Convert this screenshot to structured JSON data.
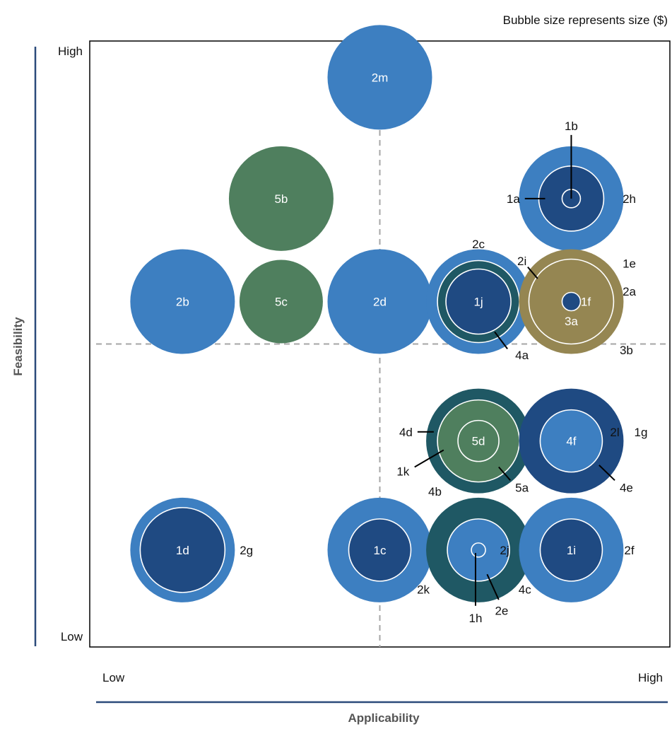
{
  "chart_data": {
    "type": "bubble-matrix",
    "note": "Bubble size represents size ($)",
    "xlabel": "Applicability",
    "ylabel": "Feasibility",
    "x_low": "Low",
    "x_high": "High",
    "y_low": "Low",
    "y_high": "High",
    "colors": {
      "light_blue": "#3d7fc1",
      "dark_blue": "#1f4a82",
      "dark_teal": "#1f5864",
      "green": "#4f7f5e",
      "gold": "#958652",
      "frame": "#000000",
      "axis_accent": "#2b4a7a",
      "divider": "#a6a6a6"
    },
    "xlim": [
      0,
      1
    ],
    "ylim": [
      0,
      1
    ],
    "divider_x": 0.5,
    "divider_y": 0.5,
    "bubbles": [
      {
        "x": 0.5,
        "y": 0.94,
        "rings": [
          {
            "r": 74,
            "color": "light_blue"
          }
        ],
        "label": "2m"
      },
      {
        "x": 0.33,
        "y": 0.74,
        "rings": [
          {
            "r": 74,
            "color": "green"
          }
        ],
        "label": "5b"
      },
      {
        "x": 0.16,
        "y": 0.57,
        "rings": [
          {
            "r": 74,
            "color": "light_blue"
          }
        ],
        "label": "2b"
      },
      {
        "x": 0.33,
        "y": 0.57,
        "rings": [
          {
            "r": 59,
            "color": "green"
          }
        ],
        "label": "5c"
      },
      {
        "x": 0.5,
        "y": 0.57,
        "rings": [
          {
            "r": 74,
            "color": "light_blue"
          }
        ],
        "label": "2d"
      },
      {
        "x": 0.83,
        "y": 0.74,
        "rings": [
          {
            "r": 74,
            "color": "light_blue"
          },
          {
            "r": 46,
            "color": "dark_blue"
          },
          {
            "r": 13,
            "color": "dark_blue"
          }
        ]
      },
      {
        "x": 0.67,
        "y": 0.57,
        "rings": [
          {
            "r": 74,
            "color": "light_blue"
          },
          {
            "r": 58,
            "color": "dark_teal"
          },
          {
            "r": 46,
            "color": "dark_blue"
          }
        ],
        "label": "1j"
      },
      {
        "x": 0.83,
        "y": 0.57,
        "rings": [
          {
            "r": 74,
            "color": "gold"
          },
          {
            "r": 60,
            "color": "gold"
          },
          {
            "r": 13,
            "color": "dark_blue"
          }
        ]
      },
      {
        "x": 0.67,
        "y": 0.34,
        "rings": [
          {
            "r": 74,
            "color": "dark_teal"
          },
          {
            "r": 58,
            "color": "green"
          },
          {
            "r": 29,
            "color": "green"
          }
        ],
        "label": "5d"
      },
      {
        "x": 0.83,
        "y": 0.34,
        "rings": [
          {
            "r": 74,
            "color": "dark_blue"
          },
          {
            "r": 44,
            "color": "light_blue"
          }
        ],
        "label": "4f"
      },
      {
        "x": 0.16,
        "y": 0.16,
        "rings": [
          {
            "r": 74,
            "color": "light_blue"
          },
          {
            "r": 60,
            "color": "dark_blue"
          }
        ],
        "label": "1d"
      },
      {
        "x": 0.5,
        "y": 0.16,
        "rings": [
          {
            "r": 74,
            "color": "light_blue"
          },
          {
            "r": 44,
            "color": "dark_blue"
          }
        ],
        "label": "1c"
      },
      {
        "x": 0.67,
        "y": 0.16,
        "rings": [
          {
            "r": 74,
            "color": "dark_teal"
          },
          {
            "r": 44,
            "color": "light_blue"
          },
          {
            "r": 10,
            "color": "light_blue"
          }
        ]
      },
      {
        "x": 0.83,
        "y": 0.16,
        "rings": [
          {
            "r": 74,
            "color": "light_blue"
          },
          {
            "r": 44,
            "color": "dark_blue"
          }
        ],
        "label": "1i"
      }
    ],
    "annotations": [
      {
        "text": "1b",
        "x": 0.83,
        "y": 0.86
      },
      {
        "text": "1a",
        "x": 0.73,
        "y": 0.74
      },
      {
        "text": "2h",
        "x": 0.93,
        "y": 0.74
      },
      {
        "text": "2c",
        "x": 0.67,
        "y": 0.665
      },
      {
        "text": "2i",
        "x": 0.745,
        "y": 0.637
      },
      {
        "text": "1e",
        "x": 0.93,
        "y": 0.633
      },
      {
        "text": "1f",
        "x": 0.855,
        "y": 0.57
      },
      {
        "text": "2a",
        "x": 0.93,
        "y": 0.587
      },
      {
        "text": "3a",
        "x": 0.83,
        "y": 0.538
      },
      {
        "text": "4a",
        "x": 0.745,
        "y": 0.482
      },
      {
        "text": "3b",
        "x": 0.925,
        "y": 0.49
      },
      {
        "text": "4d",
        "x": 0.545,
        "y": 0.355
      },
      {
        "text": "2l",
        "x": 0.905,
        "y": 0.355
      },
      {
        "text": "1g",
        "x": 0.95,
        "y": 0.355
      },
      {
        "text": "1k",
        "x": 0.54,
        "y": 0.29
      },
      {
        "text": "4b",
        "x": 0.595,
        "y": 0.257
      },
      {
        "text": "5a",
        "x": 0.745,
        "y": 0.263
      },
      {
        "text": "4e",
        "x": 0.925,
        "y": 0.263
      },
      {
        "text": "2g",
        "x": 0.27,
        "y": 0.16
      },
      {
        "text": "2j",
        "x": 0.715,
        "y": 0.16
      },
      {
        "text": "2f",
        "x": 0.93,
        "y": 0.16
      },
      {
        "text": "2k",
        "x": 0.575,
        "y": 0.095
      },
      {
        "text": "4c",
        "x": 0.75,
        "y": 0.095
      },
      {
        "text": "2e",
        "x": 0.71,
        "y": 0.06
      },
      {
        "text": "1h",
        "x": 0.665,
        "y": 0.048
      }
    ],
    "leaders": [
      {
        "from": [
          0.83,
          0.845
        ],
        "to": [
          0.83,
          0.74
        ]
      },
      {
        "from": [
          0.75,
          0.74
        ],
        "to": [
          0.785,
          0.74
        ]
      },
      {
        "from": [
          0.755,
          0.627
        ],
        "to": [
          0.772,
          0.608
        ]
      },
      {
        "from": [
          0.72,
          0.492
        ],
        "to": [
          0.698,
          0.52
        ]
      },
      {
        "from": [
          0.565,
          0.355
        ],
        "to": [
          0.593,
          0.355
        ]
      },
      {
        "from": [
          0.56,
          0.297
        ],
        "to": [
          0.61,
          0.325
        ]
      },
      {
        "from": [
          0.725,
          0.275
        ],
        "to": [
          0.705,
          0.297
        ]
      },
      {
        "from": [
          0.905,
          0.275
        ],
        "to": [
          0.878,
          0.3
        ]
      },
      {
        "from": [
          0.665,
          0.068
        ],
        "to": [
          0.665,
          0.155
        ]
      },
      {
        "from": [
          0.705,
          0.078
        ],
        "to": [
          0.685,
          0.12
        ]
      }
    ]
  }
}
